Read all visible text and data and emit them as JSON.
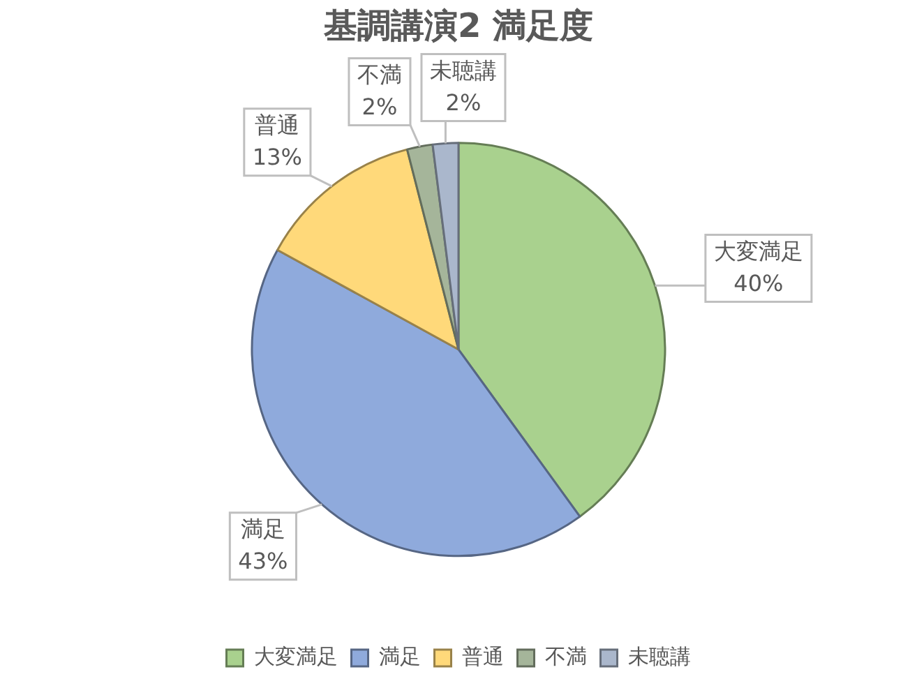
{
  "chart_data": {
    "type": "pie",
    "title": "基調講演2 満足度",
    "categories": [
      "大変満足",
      "満足",
      "普通",
      "不満",
      "未聴講"
    ],
    "values": [
      40,
      43,
      13,
      2,
      2
    ],
    "colors": [
      "#a9d18e",
      "#8faadc",
      "#ffd97a",
      "#a5b59a",
      "#aab7cc"
    ],
    "value_labels": [
      "40%",
      "43%",
      "13%",
      "2%",
      "2%"
    ],
    "legend": "bottom"
  }
}
